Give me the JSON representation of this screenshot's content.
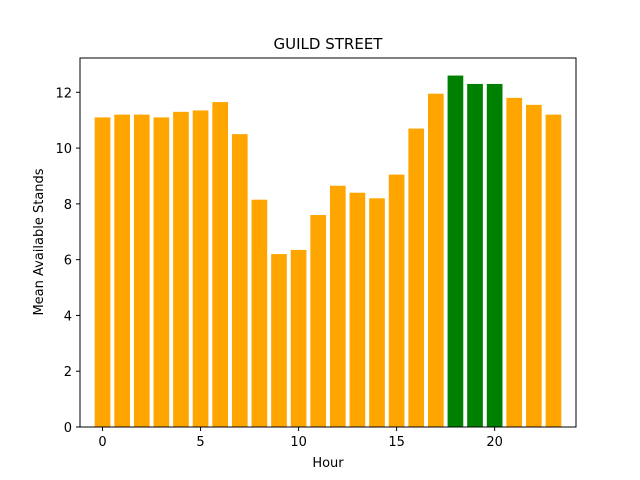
{
  "chart_data": {
    "type": "bar",
    "title": "GUILD STREET",
    "xlabel": "Hour",
    "ylabel": "Mean Available Stands",
    "x": [
      0,
      1,
      2,
      3,
      4,
      5,
      6,
      7,
      8,
      9,
      10,
      11,
      12,
      13,
      14,
      15,
      16,
      17,
      18,
      19,
      20,
      21,
      22,
      23
    ],
    "values": [
      11.1,
      11.2,
      11.2,
      11.1,
      11.3,
      11.35,
      11.65,
      10.5,
      8.15,
      6.2,
      6.35,
      7.6,
      8.65,
      8.4,
      8.2,
      9.05,
      10.7,
      11.95,
      12.6,
      12.3,
      12.3,
      11.8,
      11.55,
      11.2
    ],
    "colors": [
      "#ffa500",
      "#ffa500",
      "#ffa500",
      "#ffa500",
      "#ffa500",
      "#ffa500",
      "#ffa500",
      "#ffa500",
      "#ffa500",
      "#ffa500",
      "#ffa500",
      "#ffa500",
      "#ffa500",
      "#ffa500",
      "#ffa500",
      "#ffa500",
      "#ffa500",
      "#ffa500",
      "#008000",
      "#008000",
      "#008000",
      "#ffa500",
      "#ffa500",
      "#ffa500"
    ],
    "xlim": [
      -1.15,
      24.15
    ],
    "ylim": [
      0,
      13.23
    ],
    "xticks": [
      0,
      5,
      10,
      15,
      20
    ],
    "yticks": [
      0,
      2,
      4,
      6,
      8,
      10,
      12
    ],
    "grid": false,
    "legend": "none"
  }
}
